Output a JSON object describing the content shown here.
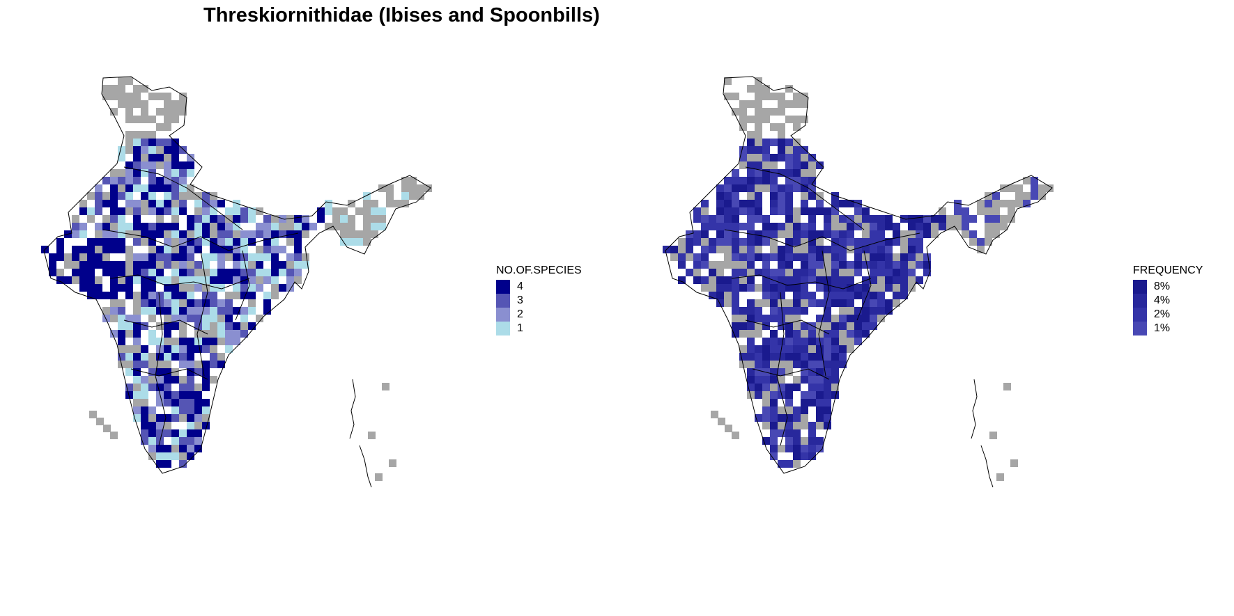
{
  "title": "Threskiornithidae (Ibises and Spoonbills)",
  "colors": {
    "no_data": "#a6a6a6",
    "outline": "#000000",
    "background": "#ffffff"
  },
  "maps": [
    {
      "legend_title": "NO.OF.SPECIES",
      "legend": [
        {
          "label": "4",
          "color": "#00008b"
        },
        {
          "label": "3",
          "color": "#5555b4"
        },
        {
          "label": "2",
          "color": "#8a8fd0"
        },
        {
          "label": "1",
          "color": "#acdce8"
        }
      ]
    },
    {
      "legend_title": "FREQUENCY",
      "legend": [
        {
          "label": "8%",
          "color": "#1a1a8e"
        },
        {
          "label": "4%",
          "color": "#28289c"
        },
        {
          "label": "2%",
          "color": "#3434a8"
        },
        {
          "label": "1%",
          "color": "#4848b4"
        }
      ]
    }
  ]
}
